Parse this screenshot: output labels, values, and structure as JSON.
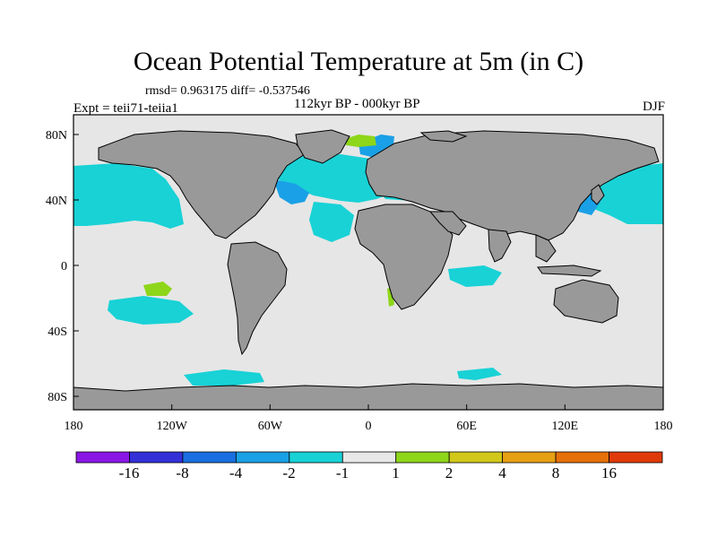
{
  "title": "Ocean Potential Temperature at 5m (in C)",
  "stats": "rmsd= 0.963175 diff= -0.537546",
  "period": "112kyr BP - 000kyr BP",
  "experiment": "Expt = teii71-teiia1",
  "season": "DJF",
  "axes": {
    "x_ticks": [
      "180",
      "120W",
      "60W",
      "0",
      "60E",
      "120E",
      "180"
    ],
    "y_ticks": [
      "80N",
      "40N",
      "0",
      "40S",
      "80S"
    ]
  },
  "colorbar": {
    "labels": [
      "-16",
      "-8",
      "-4",
      "-2",
      "-1",
      "1",
      "2",
      "4",
      "8",
      "16"
    ],
    "colors": [
      "#8a17e6",
      "#3430d8",
      "#1a6fe0",
      "#1aa0e6",
      "#18d2d6",
      "#e8e8e8",
      "#8ed61a",
      "#d2c81a",
      "#e6a014",
      "#e6700a",
      "#e03a0a"
    ]
  },
  "map_colors": {
    "land": "#999999",
    "neutral": "#e6e6e6",
    "coast": "#000000"
  }
}
